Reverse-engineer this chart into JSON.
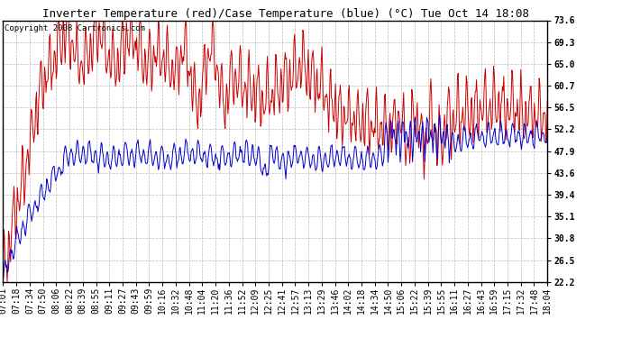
{
  "title": "Inverter Temperature (red)/Case Temperature (blue) (°C) Tue Oct 14 18:08",
  "copyright": "Copyright 2008 Cartronics.com",
  "yticks": [
    22.2,
    26.5,
    30.8,
    35.1,
    39.4,
    43.6,
    47.9,
    52.2,
    56.5,
    60.7,
    65.0,
    69.3,
    73.6
  ],
  "ymin": 22.2,
  "ymax": 73.6,
  "x_labels": [
    "07:01",
    "07:18",
    "07:34",
    "07:50",
    "08:06",
    "08:22",
    "08:39",
    "08:55",
    "09:11",
    "09:27",
    "09:43",
    "09:59",
    "10:16",
    "10:32",
    "10:48",
    "11:04",
    "11:20",
    "11:36",
    "11:52",
    "12:09",
    "12:25",
    "12:41",
    "12:57",
    "13:13",
    "13:29",
    "13:46",
    "14:02",
    "14:18",
    "14:34",
    "14:50",
    "15:06",
    "15:22",
    "15:39",
    "15:55",
    "16:11",
    "16:27",
    "16:43",
    "16:59",
    "17:15",
    "17:32",
    "17:48",
    "18:04"
  ],
  "bg_color": "#ffffff",
  "plot_bg_color": "#ffffff",
  "grid_color": "#aaaaaa",
  "red_color": "#cc0000",
  "blue_color": "#0000cc",
  "title_fontsize": 9,
  "tick_fontsize": 7,
  "copyright_fontsize": 6.5
}
